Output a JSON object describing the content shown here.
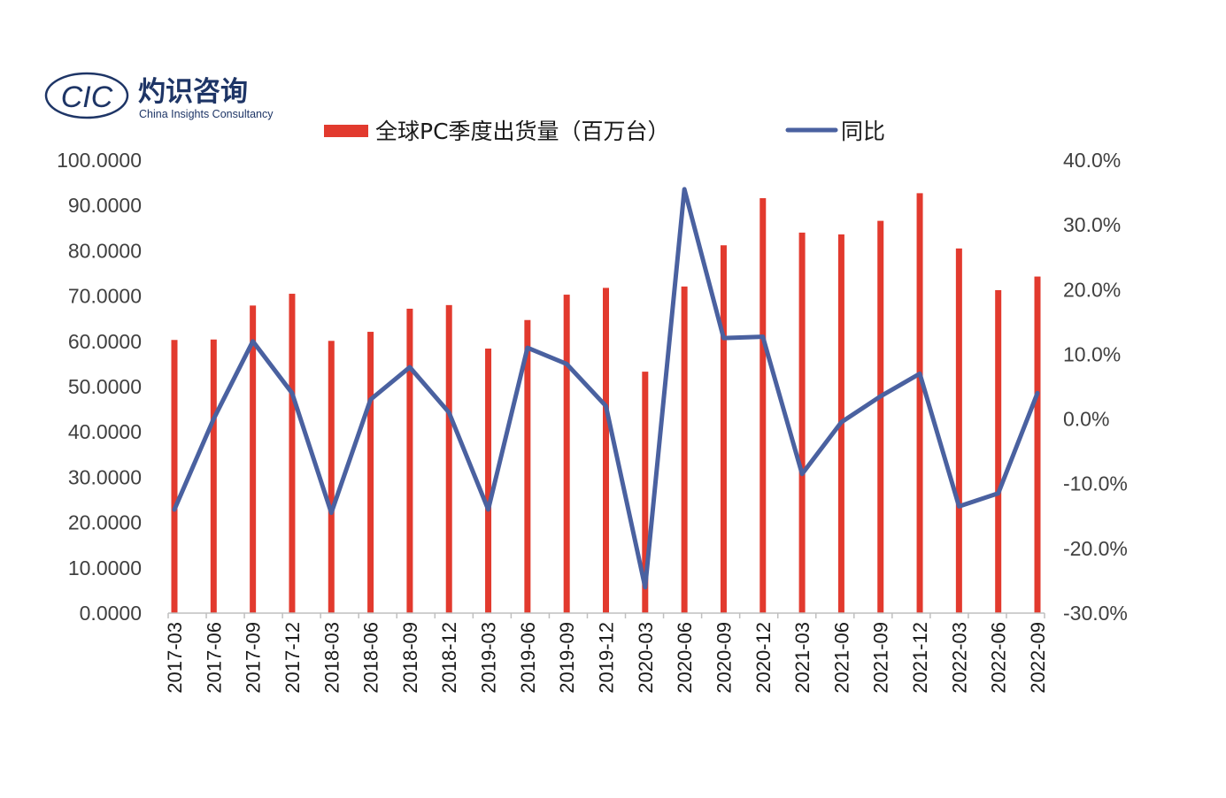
{
  "logo": {
    "mark_text": "CIC",
    "name_cn": "灼识咨询",
    "name_en": "China Insights Consultancy"
  },
  "colors": {
    "bar": "#e23a2e",
    "line": "#4a61a0",
    "axis": "#bfbfbf",
    "brand": "#1e3566"
  },
  "legend": {
    "placement": "top-center",
    "bar_label": "全球PC季度出货量（百万台）",
    "line_label": "同比"
  },
  "chart_data": {
    "type": "bar+line",
    "categories": [
      "2017-03",
      "2017-06",
      "2017-09",
      "2017-12",
      "2018-03",
      "2018-06",
      "2018-09",
      "2018-12",
      "2019-03",
      "2019-06",
      "2019-09",
      "2019-12",
      "2020-03",
      "2020-06",
      "2020-09",
      "2020-12",
      "2021-03",
      "2021-06",
      "2021-09",
      "2021-12",
      "2022-03",
      "2022-06",
      "2022-09"
    ],
    "series": [
      {
        "name": "全球PC季度出货量（百万台）",
        "type": "bar",
        "axis": "left",
        "values": [
          60.3,
          60.4,
          67.9,
          70.5,
          60.1,
          62.1,
          67.2,
          68.0,
          58.4,
          64.7,
          70.3,
          71.8,
          53.3,
          72.1,
          81.2,
          91.6,
          84.0,
          83.6,
          86.6,
          92.7,
          80.5,
          71.3,
          74.3
        ]
      },
      {
        "name": "同比",
        "type": "line",
        "axis": "right",
        "values": [
          -14.0,
          0.0,
          12.0,
          4.0,
          -14.5,
          3.0,
          8.0,
          1.0,
          -14.0,
          11.0,
          8.5,
          2.0,
          -26.0,
          35.5,
          12.5,
          12.7,
          -8.5,
          -0.5,
          3.5,
          7.0,
          -13.5,
          -11.5,
          4.0
        ]
      }
    ],
    "left_axis": {
      "min": 0,
      "max": 100,
      "step": 10,
      "tick_labels": [
        "0.0000",
        "10.0000",
        "20.0000",
        "30.0000",
        "40.0000",
        "50.0000",
        "60.0000",
        "70.0000",
        "80.0000",
        "90.0000",
        "100.0000"
      ]
    },
    "right_axis": {
      "min": -30,
      "max": 40,
      "step": 10,
      "tick_labels": [
        "-30.0%",
        "-20.0%",
        "-10.0%",
        "0.0%",
        "10.0%",
        "20.0%",
        "30.0%",
        "40.0%"
      ]
    },
    "grid": false
  }
}
